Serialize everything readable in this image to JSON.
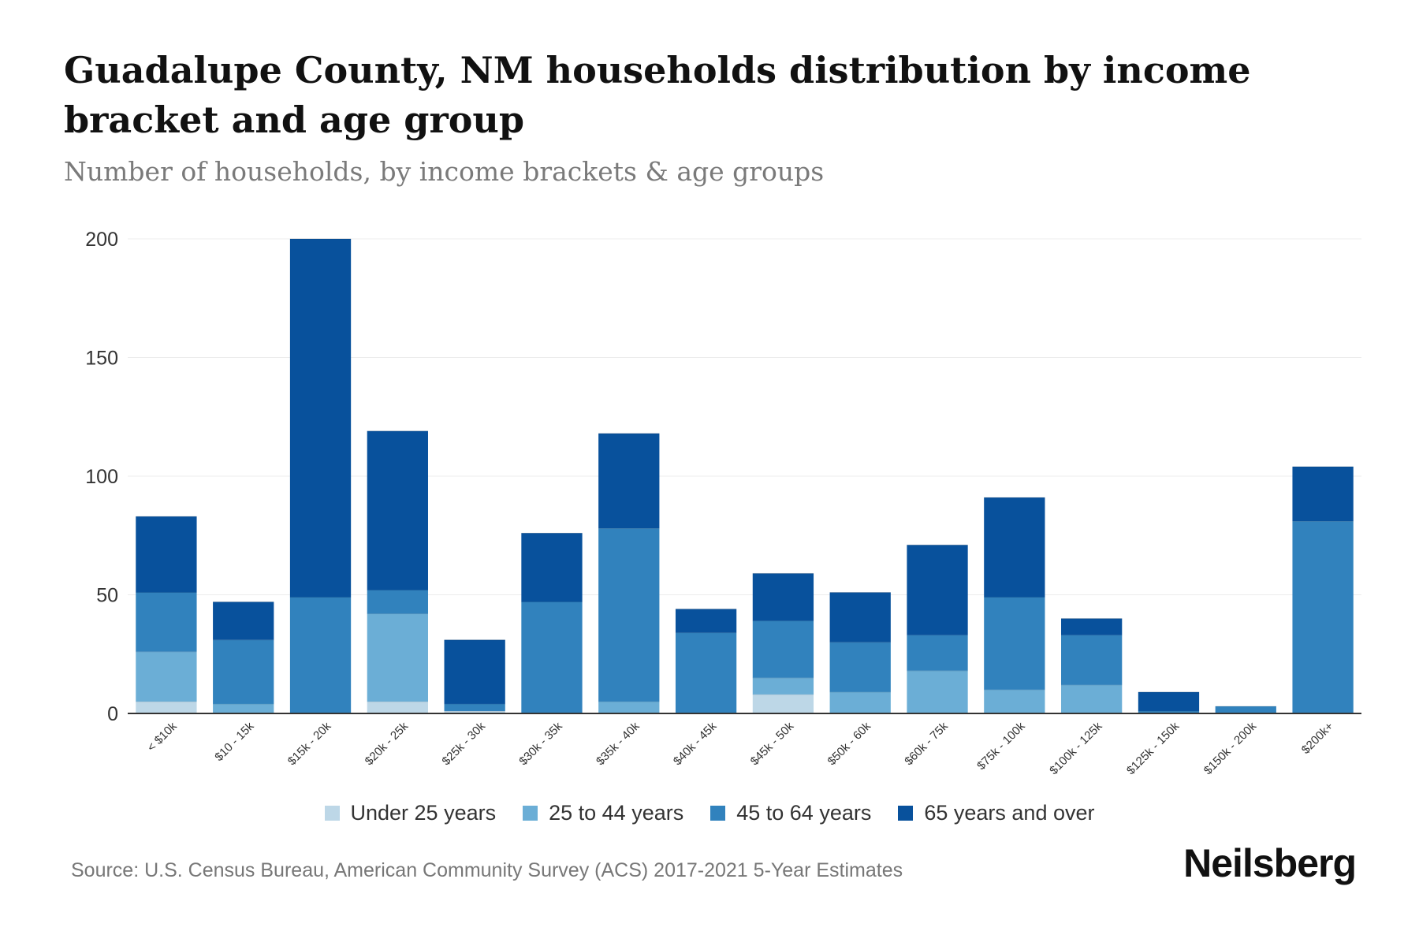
{
  "chart_data": {
    "type": "bar",
    "stacked": true,
    "title": "Guadalupe County, NM households distribution by income bracket and age group",
    "subtitle": "Number of households, by income brackets & age groups",
    "xlabel": "",
    "ylabel": "",
    "ylim": [
      0,
      200
    ],
    "yticks": [
      0,
      50,
      100,
      150,
      200
    ],
    "grid": true,
    "legend_position": "bottom",
    "categories": [
      "< $10k",
      "$10 - 15k",
      "$15k - 20k",
      "$20k - 25k",
      "$25k - 30k",
      "$30k - 35k",
      "$35k - 40k",
      "$40k - 45k",
      "$45k - 50k",
      "$50k - 60k",
      "$60k - 75k",
      "$75k - 100k",
      "$100k - 125k",
      "$125k - 150k",
      "$150k - 200k",
      "$200k+"
    ],
    "series": [
      {
        "name": "Under 25 years",
        "color": "#bdd7e7",
        "values": [
          5,
          0,
          0,
          5,
          1,
          0,
          0,
          0,
          8,
          0,
          0,
          0,
          0,
          0,
          0,
          0
        ]
      },
      {
        "name": "25 to 44 years",
        "color": "#6baed6",
        "values": [
          21,
          4,
          0,
          37,
          0,
          0,
          5,
          0,
          7,
          9,
          18,
          10,
          12,
          0,
          0,
          0
        ]
      },
      {
        "name": "45 to 64 years",
        "color": "#3182bd",
        "values": [
          25,
          27,
          49,
          10,
          3,
          47,
          73,
          34,
          24,
          21,
          15,
          39,
          21,
          1,
          3,
          81
        ]
      },
      {
        "name": "65 years and over",
        "color": "#08519c",
        "values": [
          32,
          16,
          151,
          67,
          27,
          29,
          40,
          10,
          20,
          21,
          38,
          42,
          7,
          8,
          0,
          23
        ]
      }
    ]
  },
  "source": "Source: U.S. Census Bureau, American Community Survey (ACS) 2017-2021 5-Year Estimates",
  "brand": "Neilsberg"
}
